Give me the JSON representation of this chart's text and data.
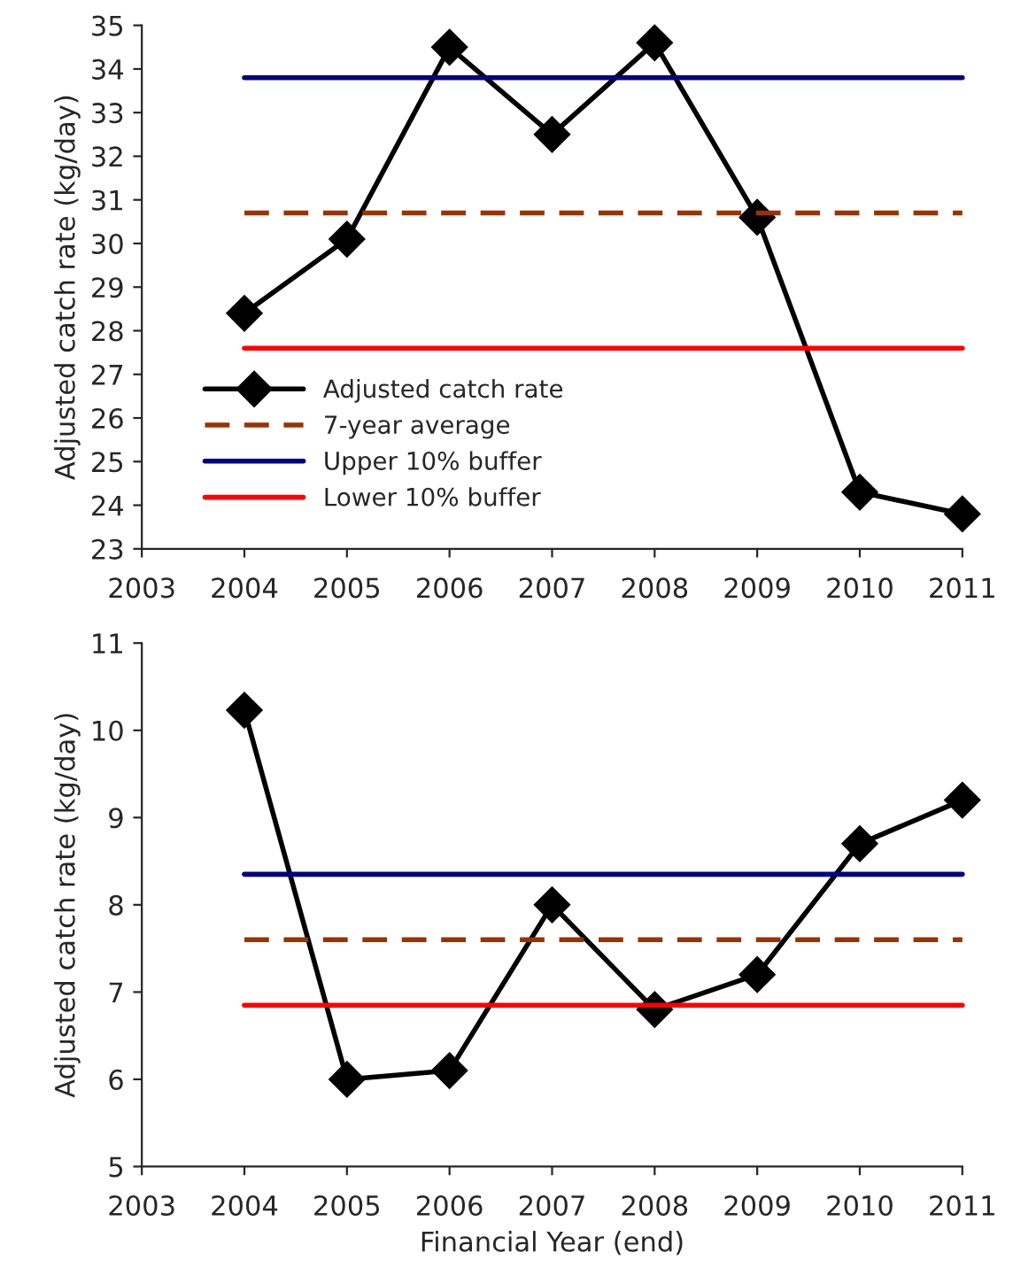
{
  "chart_data": [
    {
      "type": "line",
      "ylabel": "Adjusted catch rate (kg/day)",
      "xlim": [
        2003,
        2011
      ],
      "xticks": [
        2003,
        2004,
        2005,
        2006,
        2007,
        2008,
        2009,
        2010,
        2011
      ],
      "ylim": [
        23,
        35
      ],
      "yticks": [
        23,
        24,
        25,
        26,
        27,
        28,
        29,
        30,
        31,
        32,
        33,
        34,
        35
      ],
      "grid": false,
      "legend": "bottom left",
      "series": [
        {
          "name": "Adjusted catch rate",
          "color": "#000000",
          "marker": "diamond",
          "line_style": "solid",
          "x": [
            2004,
            2005,
            2006,
            2007,
            2008,
            2009,
            2010,
            2011
          ],
          "values": [
            28.4,
            30.1,
            34.5,
            32.5,
            34.6,
            30.6,
            24.3,
            23.8
          ]
        },
        {
          "name": "7-year average",
          "color": "#993300",
          "marker": "none",
          "line_style": "dashed",
          "x": [
            2004,
            2011
          ],
          "values": [
            30.7,
            30.7
          ]
        },
        {
          "name": "Upper 10% buffer",
          "color": "#000080",
          "marker": "none",
          "line_style": "solid",
          "x": [
            2004,
            2011
          ],
          "values": [
            33.8,
            33.8
          ]
        },
        {
          "name": "Lower 10% buffer",
          "color": "#ff0000",
          "marker": "none",
          "line_style": "solid",
          "x": [
            2004,
            2011
          ],
          "values": [
            27.6,
            27.6
          ]
        }
      ]
    },
    {
      "type": "line",
      "ylabel": "Adjusted catch rate (kg/day)",
      "xlabel": "Financial Year (end)",
      "xlim": [
        2003,
        2011
      ],
      "xticks": [
        2003,
        2004,
        2005,
        2006,
        2007,
        2008,
        2009,
        2010,
        2011
      ],
      "ylim": [
        5,
        11
      ],
      "yticks": [
        5,
        6,
        7,
        8,
        9,
        10,
        11
      ],
      "grid": false,
      "legend": false,
      "series": [
        {
          "color": "#000000",
          "marker": "diamond",
          "line_style": "solid",
          "x": [
            2004,
            2005,
            2006,
            2007,
            2008,
            2009,
            2010,
            2011
          ],
          "values": [
            10.23,
            6.0,
            6.1,
            8.0,
            6.8,
            7.2,
            8.7,
            9.2
          ]
        },
        {
          "color": "#993300",
          "marker": "none",
          "line_style": "dashed",
          "x": [
            2004,
            2011
          ],
          "values": [
            7.6,
            7.6
          ]
        },
        {
          "color": "#000080",
          "marker": "none",
          "line_style": "solid",
          "x": [
            2004,
            2011
          ],
          "values": [
            8.35,
            8.35
          ]
        },
        {
          "color": "#ff0000",
          "marker": "none",
          "line_style": "solid",
          "x": [
            2004,
            2011
          ],
          "values": [
            6.85,
            6.85
          ]
        }
      ]
    }
  ]
}
